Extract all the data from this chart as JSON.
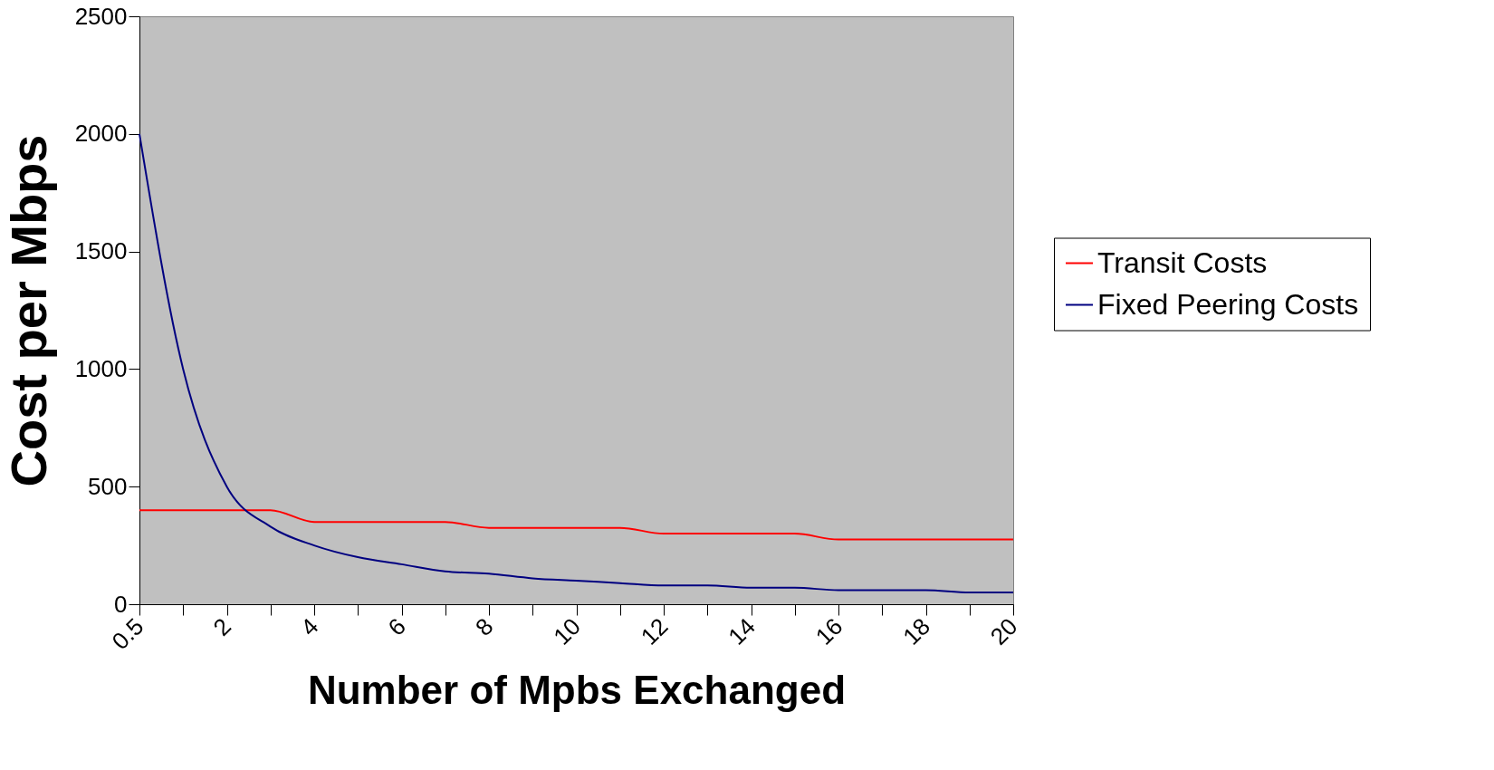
{
  "chart_data": {
    "type": "line",
    "xlabel": "Number of Mpbs Exchanged",
    "ylabel": "Cost per Mbps",
    "categories": [
      "0.5",
      null,
      "2",
      null,
      "4",
      null,
      "6",
      null,
      "8",
      null,
      "10",
      null,
      "12",
      null,
      "14",
      null,
      "16",
      null,
      "18",
      null,
      "20"
    ],
    "series": [
      {
        "name": "Transit Costs",
        "color": "#ff0000",
        "values": [
          400,
          400,
          400,
          400,
          350,
          350,
          350,
          350,
          325,
          325,
          325,
          325,
          300,
          300,
          300,
          300,
          275,
          275,
          275,
          275,
          275
        ]
      },
      {
        "name": "Fixed Peering Costs",
        "color": "#000080",
        "values": [
          2000,
          1000,
          500,
          330,
          250,
          200,
          170,
          140,
          130,
          110,
          100,
          90,
          80,
          80,
          70,
          70,
          60,
          60,
          60,
          50,
          50
        ]
      }
    ],
    "ylim": [
      0,
      2500
    ],
    "yticks": [
      0,
      500,
      1000,
      1500,
      2000,
      2500
    ],
    "grid": false,
    "legend": "right",
    "marker": "none",
    "line_style": "solid"
  }
}
